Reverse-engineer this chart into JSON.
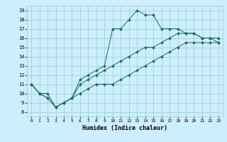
{
  "title": "",
  "xlabel": "Humidex (Indice chaleur)",
  "bg_color": "#cceeff",
  "grid_color": "#99cccc",
  "line_color": "#1a6b5a",
  "xlim": [
    -0.5,
    23.5
  ],
  "ylim": [
    7.5,
    19.5
  ],
  "xticks": [
    0,
    1,
    2,
    3,
    4,
    5,
    6,
    7,
    8,
    9,
    10,
    11,
    12,
    13,
    14,
    15,
    16,
    17,
    18,
    19,
    20,
    21,
    22,
    23
  ],
  "yticks": [
    8,
    9,
    10,
    11,
    12,
    13,
    14,
    15,
    16,
    17,
    18,
    19
  ],
  "line1_x": [
    0,
    1,
    2,
    3,
    4,
    5,
    6,
    7,
    8,
    9,
    10,
    11,
    12,
    13,
    14,
    15,
    16,
    17,
    18,
    19,
    20,
    21,
    22,
    23
  ],
  "line1_y": [
    11,
    10,
    10,
    8.5,
    9,
    9.5,
    11.5,
    12,
    12.5,
    13,
    17,
    17,
    18,
    19.0,
    18.5,
    18.5,
    17,
    17,
    17,
    16.5,
    16.5,
    16,
    16,
    16
  ],
  "line2_x": [
    0,
    1,
    2,
    3,
    4,
    5,
    6,
    7,
    8,
    9,
    10,
    11,
    12,
    13,
    14,
    15,
    16,
    17,
    18,
    19,
    20,
    21,
    22,
    23
  ],
  "line2_y": [
    11,
    10,
    9.5,
    8.5,
    9,
    9.5,
    11,
    11.5,
    12,
    12.5,
    13,
    13.5,
    14,
    14.5,
    15,
    15,
    15.5,
    16,
    16.5,
    16.5,
    16.5,
    16,
    16,
    15.5
  ],
  "line3_x": [
    0,
    1,
    2,
    3,
    4,
    5,
    6,
    7,
    8,
    9,
    10,
    11,
    12,
    13,
    14,
    15,
    16,
    17,
    18,
    19,
    20,
    21,
    22,
    23
  ],
  "line3_y": [
    11,
    10,
    9.5,
    8.5,
    9,
    9.5,
    10,
    10.5,
    11,
    11,
    11,
    11.5,
    12,
    12.5,
    13,
    13.5,
    14,
    14.5,
    15,
    15.5,
    15.5,
    15.5,
    15.5,
    15.5
  ]
}
